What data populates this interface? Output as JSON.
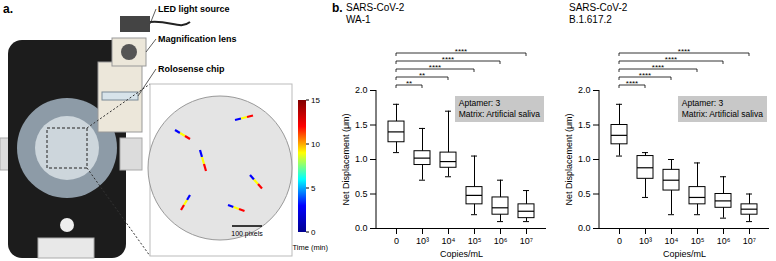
{
  "panel_labels": [
    "a.",
    "b."
  ],
  "photo_panel": {
    "annotations": [
      "LED light source",
      "Magnification lens",
      "Rolosense chip"
    ],
    "scale_bar": "100 pixels",
    "colorbar": {
      "label": "Time (min)",
      "range": [
        0,
        15
      ],
      "ticks": [
        0,
        5,
        10,
        15
      ]
    }
  },
  "chart_data": [
    {
      "type": "box",
      "title": "SARS-CoV-2",
      "subtitle": "WA-1",
      "x_label": "Copies/mL",
      "y_label": "Net Displacement (μm)",
      "categories": [
        "0",
        "10³",
        "10⁴",
        "10⁵",
        "10⁶",
        "10⁷"
      ],
      "boxes": [
        {
          "min": 1.1,
          "q1": 1.25,
          "median": 1.4,
          "q3": 1.55,
          "max": 1.8
        },
        {
          "min": 0.7,
          "q1": 0.92,
          "median": 1.02,
          "q3": 1.12,
          "max": 1.45
        },
        {
          "min": 0.75,
          "q1": 0.88,
          "median": 0.97,
          "q3": 1.1,
          "max": 1.7
        },
        {
          "min": 0.2,
          "q1": 0.35,
          "median": 0.48,
          "q3": 0.6,
          "max": 1.05
        },
        {
          "min": 0.1,
          "q1": 0.2,
          "median": 0.3,
          "q3": 0.45,
          "max": 0.7
        },
        {
          "min": 0.1,
          "q1": 0.15,
          "median": 0.25,
          "q3": 0.35,
          "max": 0.55
        }
      ],
      "ylim": [
        0,
        2
      ],
      "yticks": [
        {
          "value": 0,
          "label": "0.0"
        },
        0.5,
        {
          "value": 1,
          "label": "1.0"
        },
        1.5,
        {
          "value": 2,
          "label": "2.0"
        }
      ],
      "annotation": [
        "Aptamer: 3",
        "Matrix: Artificial saliva"
      ],
      "comparisons": [
        {
          "from": "0",
          "to": "10³",
          "label": "**"
        },
        {
          "from": "0",
          "to": "10⁴",
          "label": "**"
        },
        {
          "from": "0",
          "to": "10⁵",
          "label": "****"
        },
        {
          "from": "0",
          "to": "10⁶",
          "label": "****"
        },
        {
          "from": "0",
          "to": "10⁷",
          "label": "****"
        }
      ],
      "color": "#000000"
    },
    {
      "type": "box",
      "title": "SARS-CoV-2",
      "subtitle": "B.1.617.2",
      "x_label": "Copies/mL",
      "y_label": "Net Displacement (μm)",
      "categories": [
        "0",
        "10³",
        "10⁴",
        "10⁵",
        "10⁶",
        "10⁷"
      ],
      "boxes": [
        {
          "min": 1.05,
          "q1": 1.22,
          "median": 1.35,
          "q3": 1.5,
          "max": 1.8
        },
        {
          "min": 0.45,
          "q1": 0.72,
          "median": 0.88,
          "q3": 1.05,
          "max": 1.1
        },
        {
          "min": 0.2,
          "q1": 0.55,
          "median": 0.7,
          "q3": 0.85,
          "max": 1.0
        },
        {
          "min": 0.2,
          "q1": 0.35,
          "median": 0.45,
          "q3": 0.6,
          "max": 0.95
        },
        {
          "min": 0.15,
          "q1": 0.3,
          "median": 0.4,
          "q3": 0.5,
          "max": 0.75
        },
        {
          "min": 0.1,
          "q1": 0.2,
          "median": 0.28,
          "q3": 0.35,
          "max": 0.5
        }
      ],
      "ylim": [
        0,
        2
      ],
      "yticks": [
        {
          "value": 0,
          "label": "0.0"
        },
        0.5,
        {
          "value": 1,
          "label": "1.0"
        },
        1.5,
        {
          "value": 2,
          "label": "2.0"
        }
      ],
      "annotation": [
        "Aptamer: 3",
        "Matrix: Artificial saliva"
      ],
      "comparisons": [
        {
          "from": "0",
          "to": "10³",
          "label": "****"
        },
        {
          "from": "0",
          "to": "10⁴",
          "label": "****"
        },
        {
          "from": "0",
          "to": "10⁵",
          "label": "****"
        },
        {
          "from": "0",
          "to": "10⁶",
          "label": "****"
        },
        {
          "from": "0",
          "to": "10⁷",
          "label": "****"
        }
      ],
      "color": "#000000"
    }
  ]
}
